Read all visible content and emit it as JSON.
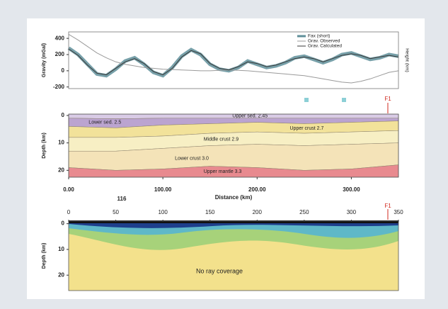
{
  "chart_data": [
    {
      "type": "line",
      "ylabel": "Gravity (mGal)",
      "y2label": "Height (km)",
      "x": [
        0,
        10,
        20,
        30,
        40,
        50,
        60,
        70,
        80,
        90,
        100,
        110,
        120,
        130,
        140,
        150,
        160,
        170,
        180,
        190,
        200,
        210,
        220,
        230,
        240,
        250,
        260,
        270,
        280,
        290,
        300,
        310,
        320,
        330,
        340,
        350
      ],
      "series": [
        {
          "name": "Fax (short)",
          "color": "#5f8f9a",
          "values": [
            280,
            200,
            80,
            -40,
            -60,
            20,
            120,
            160,
            80,
            -20,
            -60,
            40,
            180,
            260,
            200,
            80,
            20,
            0,
            40,
            120,
            80,
            40,
            60,
            100,
            160,
            180,
            140,
            100,
            140,
            200,
            220,
            180,
            140,
            160,
            200,
            180
          ]
        },
        {
          "name": "Grav. Observed",
          "color": "#9a9a9a",
          "values": [
            450,
            380,
            300,
            220,
            160,
            110,
            80,
            60,
            40,
            30,
            20,
            15,
            10,
            5,
            0,
            0,
            5,
            10,
            5,
            0,
            -10,
            -20,
            -30,
            -40,
            -50,
            -60,
            -80,
            -100,
            -120,
            -140,
            -150,
            -130,
            -100,
            -60,
            -20,
            0
          ]
        },
        {
          "name": "Grav. Calculated",
          "color": "#3a3a3a",
          "values": [
            270,
            190,
            70,
            -30,
            -50,
            30,
            110,
            150,
            90,
            -10,
            -50,
            30,
            170,
            250,
            210,
            90,
            30,
            10,
            50,
            110,
            90,
            50,
            70,
            110,
            150,
            170,
            150,
            110,
            150,
            190,
            210,
            190,
            150,
            170,
            190,
            170
          ]
        }
      ],
      "xlim": [
        0,
        350
      ],
      "ylim": [
        -220,
        480
      ],
      "yticks": [
        -200,
        0,
        200,
        400
      ]
    },
    {
      "type": "layers",
      "ylabel": "Depth (km)",
      "xlabel": "Distance (km)",
      "annotation": "116",
      "marker": "F1",
      "x": [
        0,
        50,
        100,
        150,
        200,
        250,
        300,
        350
      ],
      "layers": [
        {
          "name": "Upper sed. 2.45",
          "color": "#d9cbe6",
          "depths": [
            1,
            1.2,
            1,
            1,
            1,
            1,
            1,
            1
          ]
        },
        {
          "name": "Lower sed. 2.5",
          "color": "#bba4d0",
          "depths": [
            4,
            4.5,
            3.5,
            3,
            2.5,
            3,
            2.5,
            2
          ]
        },
        {
          "name": "Upper crust 2.7",
          "color": "#f2e29a",
          "depths": [
            8,
            8,
            7.5,
            6.5,
            6,
            6.5,
            6,
            5.5
          ]
        },
        {
          "name": "Middle crust 2.9",
          "color": "#f7efc4",
          "depths": [
            13,
            13,
            12,
            11,
            10.5,
            11,
            10.5,
            10
          ]
        },
        {
          "name": "Lower crust 3.0",
          "color": "#f4e3b8",
          "depths": [
            19,
            20,
            19.5,
            18.5,
            19,
            20,
            19.5,
            18
          ]
        },
        {
          "name": "Upper mantle 3.3",
          "color": "#e88a8f",
          "depths": [
            22.5,
            22.5,
            22.5,
            22.5,
            22.5,
            22.5,
            22.5,
            22.5
          ]
        }
      ],
      "xlim": [
        0,
        350
      ],
      "ylim": [
        -0.5,
        22.5
      ],
      "yticks": [
        0,
        10,
        20
      ],
      "xticks": [
        {
          "value": 0,
          "label": "0.00"
        },
        {
          "value": 100,
          "label": "100.00"
        },
        {
          "value": 200,
          "label": "200.00"
        },
        {
          "value": 300,
          "label": "300.00"
        }
      ]
    },
    {
      "type": "tomography",
      "ylabel": "Depth (km)",
      "annotation": "No ray coverage",
      "marker": "F1",
      "xlim": [
        0,
        350
      ],
      "ylim": [
        -1,
        26
      ],
      "yticks": [
        0,
        10,
        20
      ],
      "xticks": [
        0,
        50,
        100,
        150,
        200,
        250,
        300,
        350
      ]
    }
  ]
}
